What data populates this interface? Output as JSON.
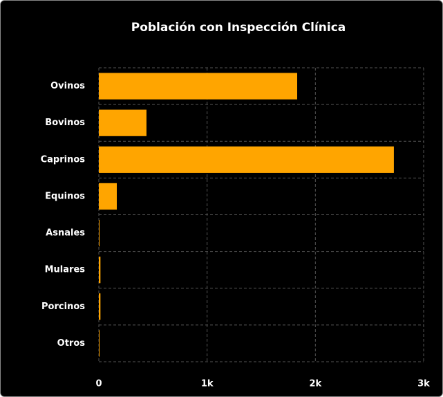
{
  "chart_data": {
    "type": "bar",
    "orientation": "horizontal",
    "title": "Población con Inspección Clínica",
    "categories": [
      "Ovinos",
      "Bovinos",
      "Caprinos",
      "Equinos",
      "Asnales",
      "Mulares",
      "Porcinos",
      "Otros"
    ],
    "values": [
      1832,
      440,
      2725,
      166,
      5,
      15,
      15,
      2
    ],
    "color": "#ffa500",
    "xlim": [
      0,
      3000
    ],
    "xticks": [
      0,
      {
        "value": 1000,
        "label": "1k"
      },
      {
        "value": 2000,
        "label": "2k"
      },
      {
        "value": 3000,
        "label": "3k"
      }
    ],
    "grid": true
  }
}
